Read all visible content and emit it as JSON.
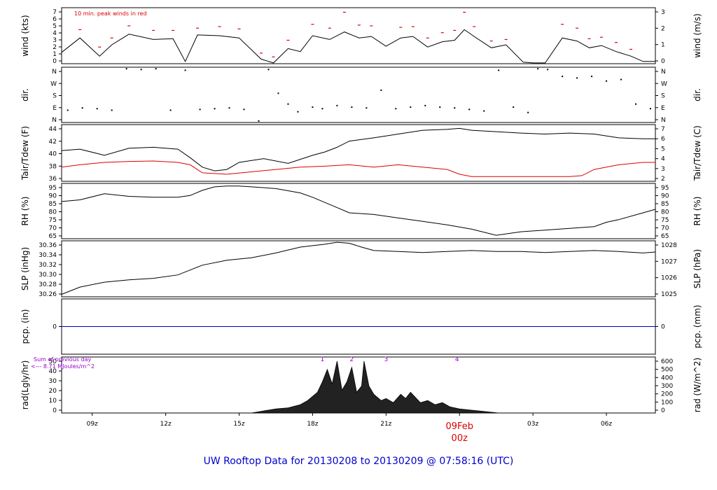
{
  "title": "UW Rooftop Data for 20130208  to  20130209 @ 07:58:16  (UTC)",
  "colors": {
    "primary": "#000000",
    "red": "#dd0000",
    "blue": "#0000cc",
    "purple": "#9900cc"
  },
  "x_axis": {
    "range_hours": [
      7.75,
      32.0
    ],
    "ticks": [
      {
        "h": 9,
        "label": "09z"
      },
      {
        "h": 12,
        "label": "12z"
      },
      {
        "h": 15,
        "label": "15z"
      },
      {
        "h": 18,
        "label": "18z"
      },
      {
        "h": 21,
        "label": "21z"
      },
      {
        "h": 24,
        "label": "00z"
      },
      {
        "h": 27,
        "label": "03z"
      },
      {
        "h": 30,
        "label": "06z"
      }
    ],
    "date_label": "09Feb",
    "date_hour_label": "00z"
  },
  "chart_data": [
    {
      "id": "wind",
      "type": "line",
      "left_label": "wind (kts)",
      "right_label": "wind (m/s)",
      "ylim": [
        0,
        7.4
      ],
      "left_ticks": [
        "0",
        "1",
        "2",
        "3",
        "4",
        "5",
        "6",
        "7"
      ],
      "right_ticks": [
        "0",
        "1",
        "2",
        "3"
      ],
      "annotation": "10 min. peak winds in red",
      "series": [
        {
          "role": "speed",
          "x": [
            7.75,
            8.5,
            9.3,
            9.8,
            10.5,
            11.5,
            12.3,
            12.8,
            13.3,
            14.2,
            15.0,
            15.9,
            16.4,
            17.0,
            17.5,
            18.0,
            18.7,
            19.3,
            19.9,
            20.4,
            21.0,
            21.6,
            22.1,
            22.7,
            23.3,
            23.8,
            24.2,
            24.6,
            25.3,
            25.9,
            26.6,
            27.0,
            27.5,
            28.2,
            28.8,
            29.3,
            29.8,
            30.4,
            31.0,
            31.5,
            32.0
          ],
          "y": [
            1.5,
            3.4,
            1.0,
            2.5,
            3.9,
            3.2,
            3.3,
            0.3,
            3.8,
            3.7,
            3.4,
            0.6,
            0.1,
            2.0,
            1.6,
            3.7,
            3.2,
            4.2,
            3.4,
            3.6,
            2.3,
            3.4,
            3.6,
            2.2,
            2.9,
            3.1,
            4.5,
            3.6,
            2.1,
            2.5,
            0.2,
            0.1,
            0.1,
            3.4,
            3.0,
            2.1,
            2.4,
            1.6,
            1.0,
            0.3,
            0.3
          ]
        },
        {
          "role": "peak",
          "x": [
            8.5,
            9.3,
            9.8,
            10.5,
            11.5,
            12.3,
            13.3,
            14.2,
            15.0,
            15.9,
            16.4,
            17.0,
            18.0,
            18.7,
            19.3,
            19.9,
            20.4,
            21.6,
            22.1,
            22.7,
            23.3,
            23.8,
            24.2,
            24.6,
            25.3,
            25.9,
            28.2,
            28.8,
            29.3,
            29.8,
            30.4,
            31.0
          ],
          "y": [
            4.5,
            2.2,
            3.4,
            5.0,
            4.4,
            4.4,
            4.7,
            4.9,
            4.6,
            1.4,
            0.9,
            3.1,
            5.2,
            4.7,
            6.8,
            5.1,
            5.0,
            4.8,
            4.9,
            3.4,
            4.1,
            4.4,
            6.8,
            4.9,
            3.0,
            3.2,
            5.2,
            4.7,
            3.3,
            3.5,
            2.8,
            1.9
          ]
        }
      ]
    },
    {
      "id": "dir",
      "type": "scatter",
      "left_label": "dir.",
      "right_label": "dir.",
      "ylim": [
        0,
        360
      ],
      "left_ticks": [
        "N",
        "E",
        "S",
        "W",
        "N"
      ],
      "right_ticks": [
        "N",
        "E",
        "S",
        "W",
        "N"
      ],
      "series": [
        {
          "x": [
            8.0,
            8.6,
            9.2,
            9.8,
            10.4,
            11.0,
            11.6,
            12.2,
            12.8,
            13.4,
            14.0,
            14.6,
            15.2,
            15.8,
            16.2,
            16.6,
            17.0,
            17.4,
            18.0,
            18.4,
            19.0,
            19.6,
            20.2,
            20.8,
            21.4,
            22.0,
            22.6,
            23.2,
            23.8,
            24.4,
            25.0,
            25.6,
            26.2,
            26.8,
            27.2,
            27.6,
            28.2,
            28.8,
            29.4,
            30.0,
            30.6,
            31.2,
            31.8
          ],
          "y": [
            80,
            95,
            90,
            80,
            350,
            345,
            350,
            80,
            340,
            85,
            90,
            95,
            85,
            10,
            345,
            190,
            120,
            70,
            100,
            90,
            110,
            100,
            95,
            210,
            90,
            100,
            110,
            100,
            95,
            85,
            75,
            340,
            100,
            65,
            350,
            345,
            300,
            290,
            300,
            270,
            280,
            120,
            90
          ]
        }
      ]
    },
    {
      "id": "temp",
      "type": "line",
      "left_label": "Tair/Tdew (F)",
      "right_label": "Tair/Tdew (C)",
      "ylim": [
        34,
        46
      ],
      "left_ticks": [
        "36",
        "38",
        "40",
        "42",
        "44"
      ],
      "right_ticks": [
        "2",
        "3",
        "4",
        "5",
        "6",
        "7"
      ],
      "series": [
        {
          "role": "air",
          "x": [
            7.75,
            8.5,
            9.5,
            10.5,
            11.5,
            12.5,
            13.0,
            13.5,
            14.0,
            14.5,
            15.0,
            16.0,
            17.0,
            18.0,
            18.5,
            19.0,
            19.5,
            20.5,
            21.5,
            22.5,
            23.5,
            24.0,
            24.5,
            25.5,
            26.5,
            27.5,
            28.5,
            29.5,
            30.5,
            31.5,
            32.0
          ],
          "y": [
            40.5,
            40.8,
            39.5,
            41.0,
            41.2,
            40.8,
            39.0,
            37.0,
            36.2,
            36.5,
            38.0,
            38.8,
            37.8,
            39.5,
            40.2,
            41.2,
            42.5,
            43.2,
            44.0,
            44.8,
            45.0,
            45.2,
            44.8,
            44.5,
            44.2,
            44.0,
            44.2,
            44.0,
            43.2,
            43.0,
            43.0
          ]
        },
        {
          "role": "dew",
          "x": [
            7.75,
            8.5,
            9.5,
            10.5,
            11.5,
            12.5,
            13.0,
            13.5,
            14.5,
            15.5,
            16.5,
            17.5,
            18.5,
            19.5,
            20.5,
            21.5,
            22.5,
            23.5,
            24.0,
            24.5,
            25.5,
            26.5,
            27.5,
            28.5,
            29.0,
            29.5,
            30.5,
            31.5,
            32.0
          ],
          "y": [
            37.0,
            37.5,
            38.0,
            38.2,
            38.3,
            38.0,
            37.5,
            35.8,
            35.5,
            36.0,
            36.5,
            37.0,
            37.2,
            37.5,
            37.0,
            37.5,
            37.0,
            36.5,
            35.5,
            35.0,
            35.0,
            35.0,
            35.0,
            35.0,
            35.2,
            36.5,
            37.5,
            38.0,
            38.0
          ]
        }
      ]
    },
    {
      "id": "rh",
      "type": "line",
      "left_label": "RH (%)",
      "right_label": "RH (%)",
      "ylim": [
        65,
        97
      ],
      "left_ticks": [
        "65",
        "70",
        "75",
        "80",
        "85",
        "90",
        "95"
      ],
      "right_ticks": [
        "65",
        "70",
        "75",
        "80",
        "85",
        "90",
        "95"
      ],
      "series": [
        {
          "x": [
            7.75,
            8.5,
            9.5,
            10.5,
            11.5,
            12.5,
            13.0,
            13.5,
            14.0,
            14.5,
            15.0,
            15.5,
            16.5,
            17.5,
            18.0,
            18.5,
            19.0,
            19.5,
            20.5,
            21.5,
            22.5,
            23.5,
            24.5,
            25.5,
            26.5,
            27.5,
            28.5,
            29.5,
            30.0,
            30.5,
            31.5,
            32.0
          ],
          "y": [
            86.5,
            87.5,
            91.0,
            89.5,
            89.0,
            89.0,
            90.0,
            93.0,
            95.0,
            95.5,
            95.5,
            95.0,
            94.0,
            91.5,
            89.0,
            86.0,
            83.0,
            80.0,
            79.0,
            77.0,
            75.0,
            73.0,
            70.5,
            67.0,
            69.0,
            70.0,
            71.0,
            72.0,
            74.5,
            76.0,
            80.0,
            82.0
          ]
        }
      ]
    },
    {
      "id": "slp",
      "type": "line",
      "left_label": "SLP (inHg)",
      "right_label": "SLP (hPa)",
      "ylim": [
        30.25,
        30.365
      ],
      "left_ticks": [
        "30.26",
        "30.28",
        "30.30",
        "30.32",
        "30.34",
        "30.36"
      ],
      "right_ticks": [
        "1025",
        "1026",
        "1027",
        "1028"
      ],
      "series": [
        {
          "x": [
            7.75,
            8.5,
            9.5,
            10.5,
            11.5,
            12.5,
            13.0,
            13.5,
            14.5,
            15.5,
            16.5,
            17.5,
            18.5,
            19.0,
            19.5,
            20.0,
            20.5,
            21.5,
            22.5,
            23.5,
            24.5,
            25.5,
            26.5,
            27.5,
            28.5,
            29.5,
            30.5,
            31.5,
            32.0
          ],
          "y": [
            30.255,
            30.27,
            30.28,
            30.285,
            30.288,
            30.295,
            30.305,
            30.315,
            30.325,
            30.33,
            30.34,
            30.352,
            30.358,
            30.362,
            30.36,
            30.352,
            30.345,
            30.343,
            30.341,
            30.343,
            30.345,
            30.343,
            30.343,
            30.341,
            30.343,
            30.345,
            30.343,
            30.34,
            30.342
          ]
        }
      ]
    },
    {
      "id": "pcp",
      "type": "line",
      "left_label": "pcp. (in)",
      "right_label": "pcp. (mm)",
      "ylim": [
        -1,
        1
      ],
      "left_ticks": [
        "0"
      ],
      "right_ticks": [
        "0"
      ],
      "series": [
        {
          "x": [
            7.75,
            32.0
          ],
          "y": [
            0,
            0
          ]
        }
      ]
    },
    {
      "id": "rad",
      "type": "area",
      "left_label": "rad(Lgly/hr)",
      "right_label": "rad (W/m^2)",
      "ylim": [
        0,
        54
      ],
      "left_ticks": [
        "0",
        "10",
        "20",
        "30",
        "40",
        "50"
      ],
      "right_ticks": [
        "0",
        "100",
        "200",
        "300",
        "400",
        "500",
        "600"
      ],
      "annotations": [
        "Sum of previous day",
        "<--- 8.71 MJoules/m^2"
      ],
      "markers": [
        {
          "x": 18.4,
          "label": "1"
        },
        {
          "x": 19.6,
          "label": "2"
        },
        {
          "x": 21.0,
          "label": "3"
        },
        {
          "x": 23.9,
          "label": "4"
        }
      ],
      "series": [
        {
          "x": [
            7.75,
            15.5,
            16.0,
            16.5,
            17.0,
            17.5,
            17.8,
            18.0,
            18.2,
            18.4,
            18.6,
            18.8,
            19.0,
            19.2,
            19.4,
            19.6,
            19.8,
            20.0,
            20.1,
            20.3,
            20.5,
            20.8,
            21.0,
            21.3,
            21.6,
            21.8,
            22.0,
            22.4,
            22.7,
            23.0,
            23.3,
            23.6,
            24.0,
            24.4,
            24.8,
            25.2,
            25.6,
            32.0
          ],
          "y": [
            0,
            0,
            2,
            4,
            5,
            8,
            12,
            16,
            20,
            30,
            42,
            28,
            50,
            22,
            30,
            44,
            20,
            26,
            50,
            26,
            18,
            12,
            14,
            10,
            18,
            14,
            20,
            10,
            12,
            8,
            10,
            6,
            4,
            3,
            2,
            1,
            0,
            0
          ]
        }
      ]
    }
  ]
}
